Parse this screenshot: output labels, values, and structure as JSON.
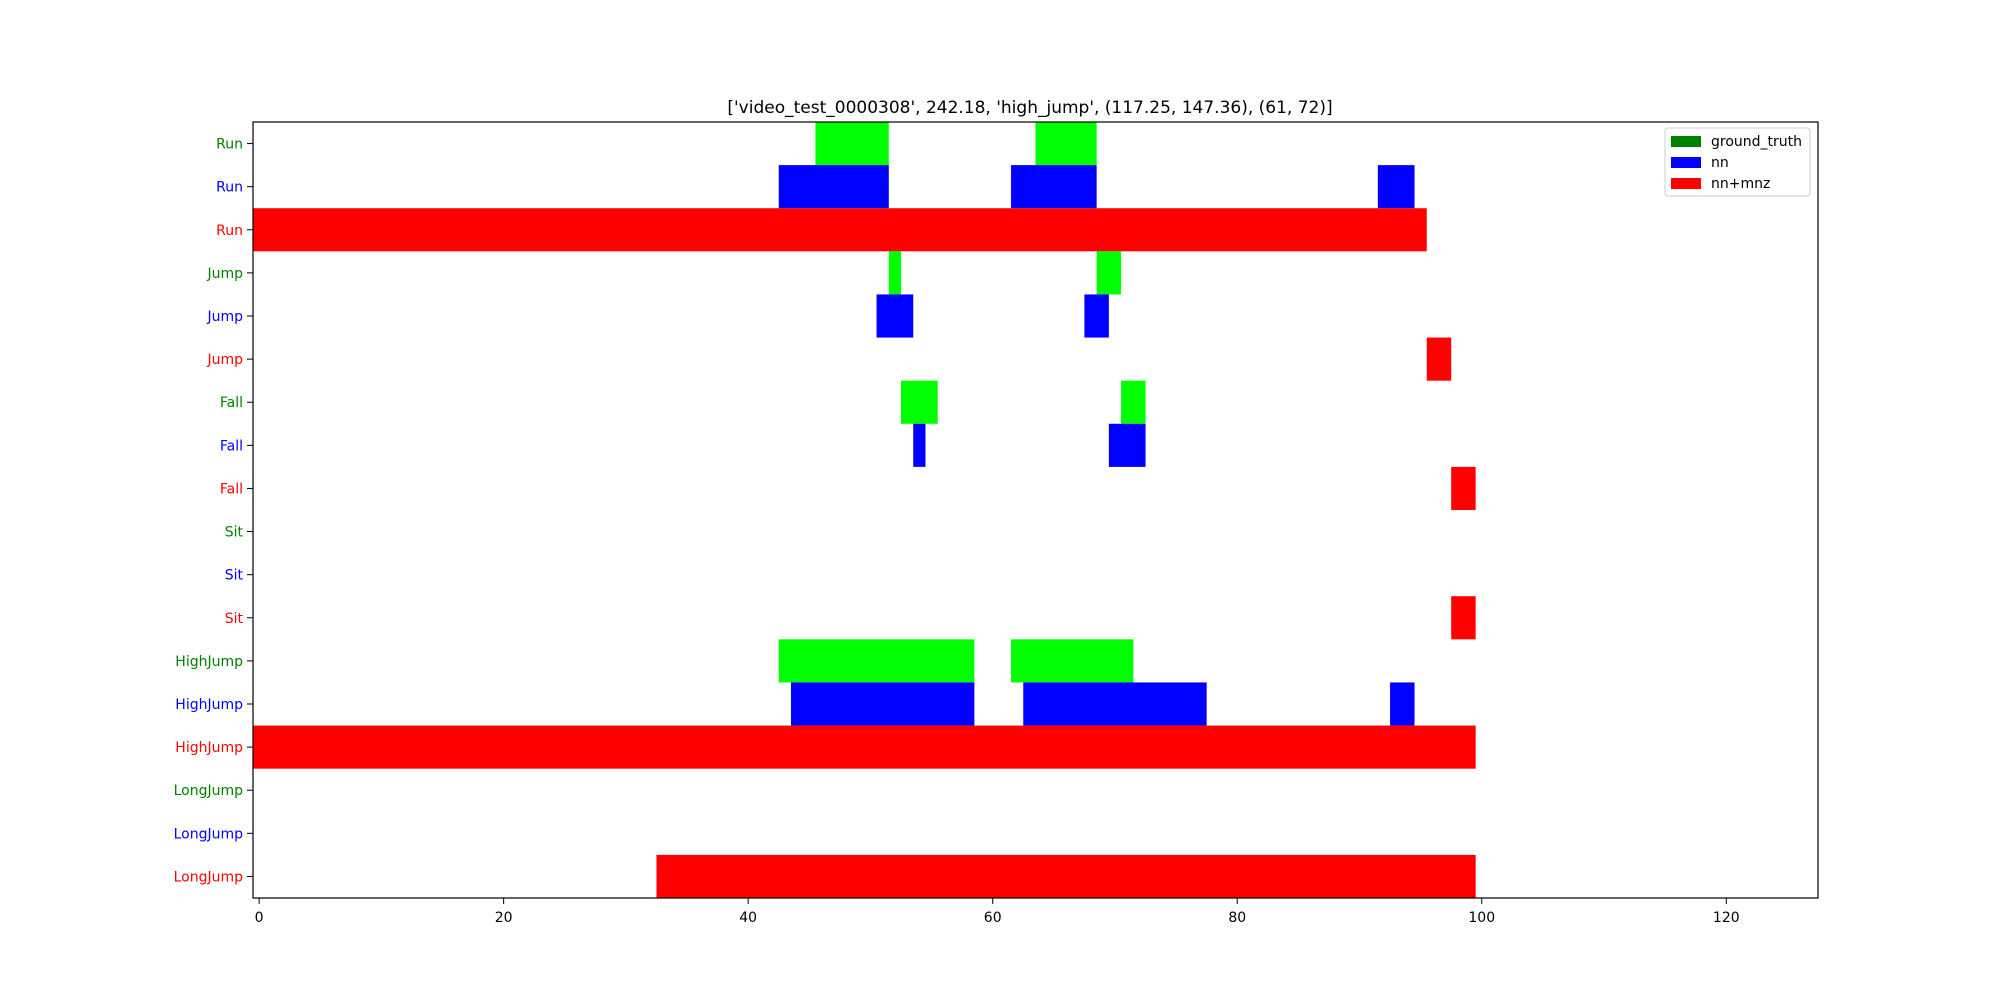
{
  "chart_data": {
    "type": "timeline",
    "title": "['video_test_0000308', 242.18, 'high_jump', (117.25, 147.36), (61, 72)]",
    "xlabel": "",
    "ylabel": "",
    "xlim": [
      -0.5,
      127.5
    ],
    "xticks": [
      0,
      20,
      40,
      60,
      80,
      100,
      120
    ],
    "grid": false,
    "legend_position": "top-right",
    "colors": {
      "ground_truth": "#00ff00",
      "nn": "#0000ff",
      "nn+mnz": "#ff0000"
    },
    "legend": [
      {
        "name": "ground_truth",
        "color": "#008000"
      },
      {
        "name": "nn",
        "color": "#0000ff"
      },
      {
        "name": "nn+mnz",
        "color": "#ff0000"
      }
    ],
    "rows": [
      {
        "label": "Run",
        "series": "ground_truth",
        "label_color": "#008000",
        "segments": [
          [
            45.5,
            51.5
          ],
          [
            63.5,
            68.5
          ]
        ]
      },
      {
        "label": "Run",
        "series": "nn",
        "label_color": "#0000ff",
        "segments": [
          [
            42.5,
            51.5
          ],
          [
            61.5,
            68.5
          ],
          [
            91.5,
            94.5
          ]
        ]
      },
      {
        "label": "Run",
        "series": "nn+mnz",
        "label_color": "#ff0000",
        "segments": [
          [
            -0.5,
            95.5
          ]
        ]
      },
      {
        "label": "Jump",
        "series": "ground_truth",
        "label_color": "#008000",
        "segments": [
          [
            51.5,
            52.5
          ],
          [
            68.5,
            70.5
          ]
        ]
      },
      {
        "label": "Jump",
        "series": "nn",
        "label_color": "#0000ff",
        "segments": [
          [
            50.5,
            53.5
          ],
          [
            67.5,
            69.5
          ]
        ]
      },
      {
        "label": "Jump",
        "series": "nn+mnz",
        "label_color": "#ff0000",
        "segments": [
          [
            95.5,
            97.5
          ]
        ]
      },
      {
        "label": "Fall",
        "series": "ground_truth",
        "label_color": "#008000",
        "segments": [
          [
            52.5,
            55.5
          ],
          [
            70.5,
            72.5
          ]
        ]
      },
      {
        "label": "Fall",
        "series": "nn",
        "label_color": "#0000ff",
        "segments": [
          [
            53.5,
            54.5
          ],
          [
            69.5,
            72.5
          ]
        ]
      },
      {
        "label": "Fall",
        "series": "nn+mnz",
        "label_color": "#ff0000",
        "segments": [
          [
            97.5,
            99.5
          ]
        ]
      },
      {
        "label": "Sit",
        "series": "ground_truth",
        "label_color": "#008000",
        "segments": []
      },
      {
        "label": "Sit",
        "series": "nn",
        "label_color": "#0000ff",
        "segments": []
      },
      {
        "label": "Sit",
        "series": "nn+mnz",
        "label_color": "#ff0000",
        "segments": [
          [
            97.5,
            99.5
          ]
        ]
      },
      {
        "label": "HighJump",
        "series": "ground_truth",
        "label_color": "#008000",
        "segments": [
          [
            42.5,
            58.5
          ],
          [
            61.5,
            71.5
          ]
        ]
      },
      {
        "label": "HighJump",
        "series": "nn",
        "label_color": "#0000ff",
        "segments": [
          [
            43.5,
            58.5
          ],
          [
            62.5,
            77.5
          ],
          [
            92.5,
            94.5
          ]
        ]
      },
      {
        "label": "HighJump",
        "series": "nn+mnz",
        "label_color": "#ff0000",
        "segments": [
          [
            -0.5,
            99.5
          ]
        ]
      },
      {
        "label": "LongJump",
        "series": "ground_truth",
        "label_color": "#008000",
        "segments": []
      },
      {
        "label": "LongJump",
        "series": "nn",
        "label_color": "#0000ff",
        "segments": []
      },
      {
        "label": "LongJump",
        "series": "nn+mnz",
        "label_color": "#ff0000",
        "segments": [
          [
            32.5,
            99.5
          ]
        ]
      }
    ]
  }
}
